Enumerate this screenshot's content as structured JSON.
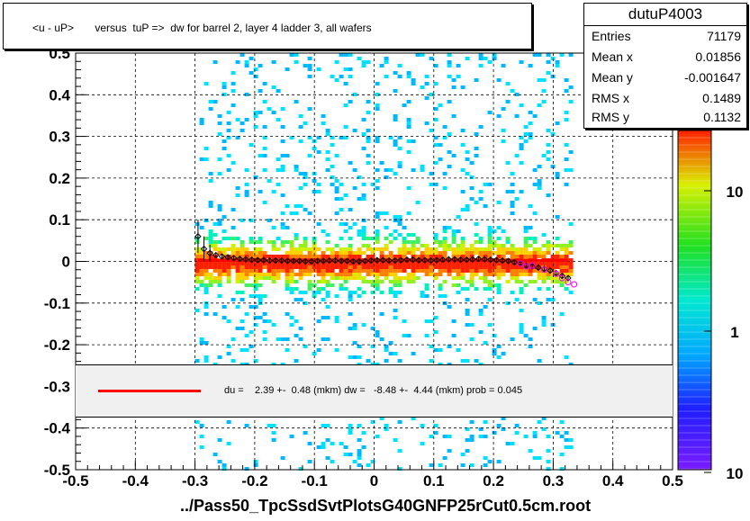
{
  "title": "<u - uP>       versus  tuP =>  dw for barrel 2, layer 4 ladder 3, all wafers",
  "stats": {
    "name": "dutuP4003",
    "rows": [
      {
        "key": "Entries",
        "value": "71179"
      },
      {
        "key": "Mean x",
        "value": "0.01856"
      },
      {
        "key": "Mean y",
        "value": "-0.001647"
      },
      {
        "key": "RMS x",
        "value": "0.1489"
      },
      {
        "key": "RMS y",
        "value": "0.1132"
      }
    ]
  },
  "fit_legend": "du =    2.39 +-  0.48 (mkm) dw =   -8.48 +-  4.44 (mkm) prob = 0.045",
  "x_title": "../Pass50_TpcSsdSvtPlotsG40GNFP25rCut0.5cm.root",
  "colors": {
    "fit": "#ff0000",
    "profile_marker": "#000000",
    "profile_marker_alt": "#ff00ff"
  },
  "chart_data": {
    "type": "heatmap",
    "xlim": [
      -0.5,
      0.5
    ],
    "ylim": [
      -0.5,
      0.5
    ],
    "x_ticks": [
      "-0.5",
      "-0.4",
      "-0.3",
      "-0.2",
      "-0.1",
      "0",
      "0.1",
      "0.2",
      "0.3",
      "0.4",
      "0.5"
    ],
    "y_ticks": [
      "-0.5",
      "-0.4",
      "-0.3",
      "-0.2",
      "-0.1",
      "0",
      "0.1",
      "0.2",
      "0.3",
      "0.4",
      "0.5"
    ],
    "grid": true,
    "z_scale": "log",
    "z_ticks": [
      "1",
      "10",
      "10"
    ],
    "occupied_x_range": [
      -0.3,
      0.33
    ],
    "fit_line": {
      "x": [
        -0.295,
        0.325
      ],
      "y": [
        0.0024,
        0.0024
      ]
    },
    "profile": {
      "x": [
        -0.295,
        -0.285,
        -0.275,
        -0.265,
        -0.255,
        -0.245,
        -0.235,
        -0.225,
        -0.215,
        -0.205,
        -0.195,
        -0.185,
        -0.175,
        -0.165,
        -0.155,
        -0.145,
        -0.135,
        -0.125,
        -0.115,
        -0.105,
        -0.095,
        -0.085,
        -0.075,
        -0.065,
        -0.055,
        -0.045,
        -0.035,
        -0.025,
        -0.015,
        -0.005,
        0.005,
        0.015,
        0.025,
        0.035,
        0.045,
        0.055,
        0.065,
        0.075,
        0.085,
        0.095,
        0.105,
        0.115,
        0.125,
        0.135,
        0.145,
        0.155,
        0.165,
        0.175,
        0.185,
        0.195,
        0.205,
        0.215,
        0.225,
        0.235,
        0.245,
        0.255,
        0.265,
        0.275,
        0.285,
        0.295,
        0.305,
        0.315,
        0.325
      ],
      "y": [
        0.06,
        0.03,
        0.02,
        0.015,
        0.012,
        0.01,
        0.008,
        0.006,
        0.005,
        0.004,
        0.003,
        0.003,
        0.002,
        0.002,
        0.002,
        0.001,
        0.001,
        0.001,
        0.0,
        0.0,
        0.001,
        0.001,
        0.002,
        0.002,
        0.001,
        0.001,
        0.0,
        0.0,
        0.001,
        0.002,
        0.003,
        0.003,
        0.002,
        0.002,
        0.003,
        0.004,
        0.004,
        0.003,
        0.003,
        0.002,
        0.003,
        0.004,
        0.005,
        0.005,
        0.004,
        0.004,
        0.005,
        0.006,
        0.005,
        0.004,
        0.003,
        0.002,
        0.001,
        -0.002,
        -0.005,
        -0.01,
        -0.012,
        -0.015,
        -0.018,
        -0.022,
        -0.028,
        -0.035,
        -0.04
      ],
      "alt_x": [
        0.245,
        0.255,
        0.265,
        0.285,
        0.305,
        0.315,
        0.325,
        0.335
      ],
      "alt_y": [
        -0.005,
        -0.012,
        -0.01,
        -0.02,
        -0.03,
        -0.04,
        -0.05,
        -0.055
      ]
    }
  }
}
